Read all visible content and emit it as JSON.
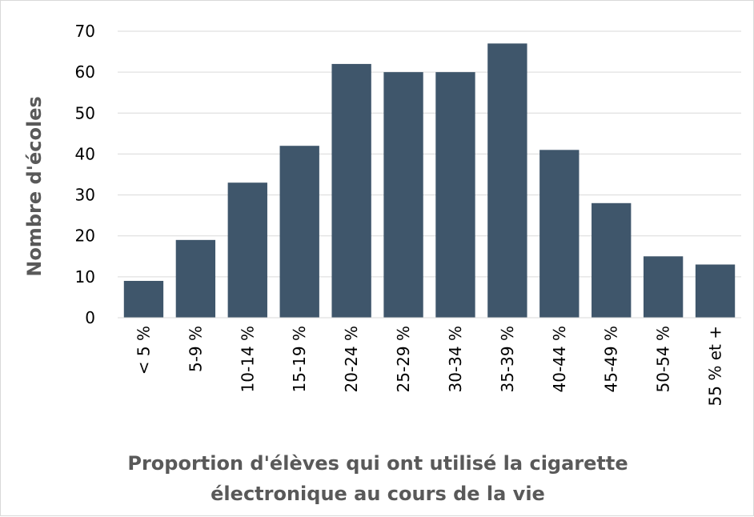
{
  "chart_data": {
    "type": "bar",
    "title": "",
    "xlabel_lines": [
      "Proportion d'élèves qui ont utilisé la cigarette",
      "électronique au cours de la vie"
    ],
    "ylabel": "Nombre d'écoles",
    "ylim": [
      0,
      70
    ],
    "yticks": [
      0,
      10,
      20,
      30,
      40,
      50,
      60,
      70
    ],
    "grid": true,
    "legend": "none",
    "bar_color": "#3f566b",
    "gridline_color": "#d9d9d9",
    "categories": [
      "< 5 %",
      "5-9 %",
      "10-14 %",
      "15-19 %",
      "20-24 %",
      "25-29 %",
      "30-34 %",
      "35-39 %",
      "40-44 %",
      "45-49 %",
      "50-54 %",
      "55 % et +"
    ],
    "values": [
      9,
      19,
      33,
      42,
      62,
      60,
      60,
      67,
      41,
      28,
      15,
      13
    ]
  }
}
